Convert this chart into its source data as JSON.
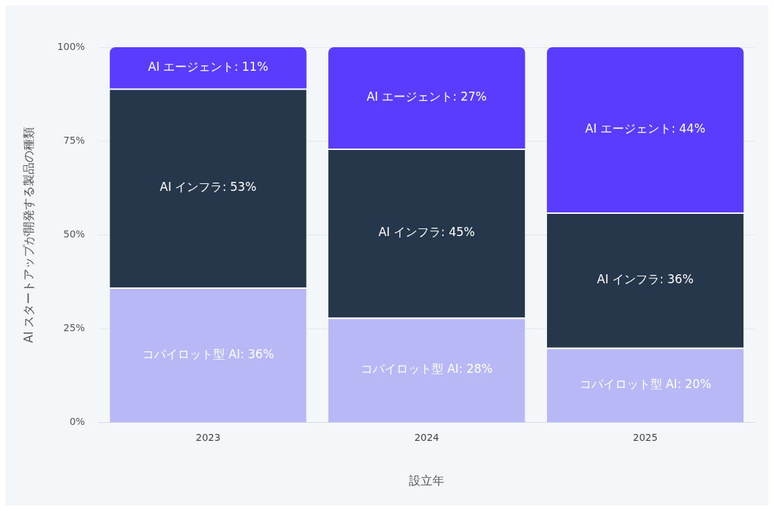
{
  "chart_data": {
    "type": "bar",
    "stacked": true,
    "xlabel": "設立年",
    "ylabel": "AI スタートアップが開発する製品の種類",
    "categories": [
      "2023",
      "2024",
      "2025"
    ],
    "series": [
      {
        "name": "コパイロット型 AI:",
        "color": "#b8b8f6",
        "values": [
          36,
          28,
          20
        ],
        "value_labels": [
          "36%",
          "28%",
          "20%"
        ]
      },
      {
        "name": "AI インフラ:",
        "color": "#26364b",
        "values": [
          53,
          45,
          36
        ],
        "value_labels": [
          "53%",
          "45%",
          "36%"
        ]
      },
      {
        "name": "AI エージェント:",
        "color": "#5a3cff",
        "values": [
          11,
          27,
          44
        ],
        "value_labels": [
          "11%",
          "27%",
          "44%"
        ]
      }
    ],
    "ylim": [
      0,
      100
    ],
    "yticks": [
      {
        "value": 0,
        "label": "0%"
      },
      {
        "value": 25,
        "label": "25%"
      },
      {
        "value": 50,
        "label": "50%"
      },
      {
        "value": 75,
        "label": "75%"
      },
      {
        "value": 100,
        "label": "100%"
      }
    ],
    "grid": "y",
    "legend": false
  }
}
